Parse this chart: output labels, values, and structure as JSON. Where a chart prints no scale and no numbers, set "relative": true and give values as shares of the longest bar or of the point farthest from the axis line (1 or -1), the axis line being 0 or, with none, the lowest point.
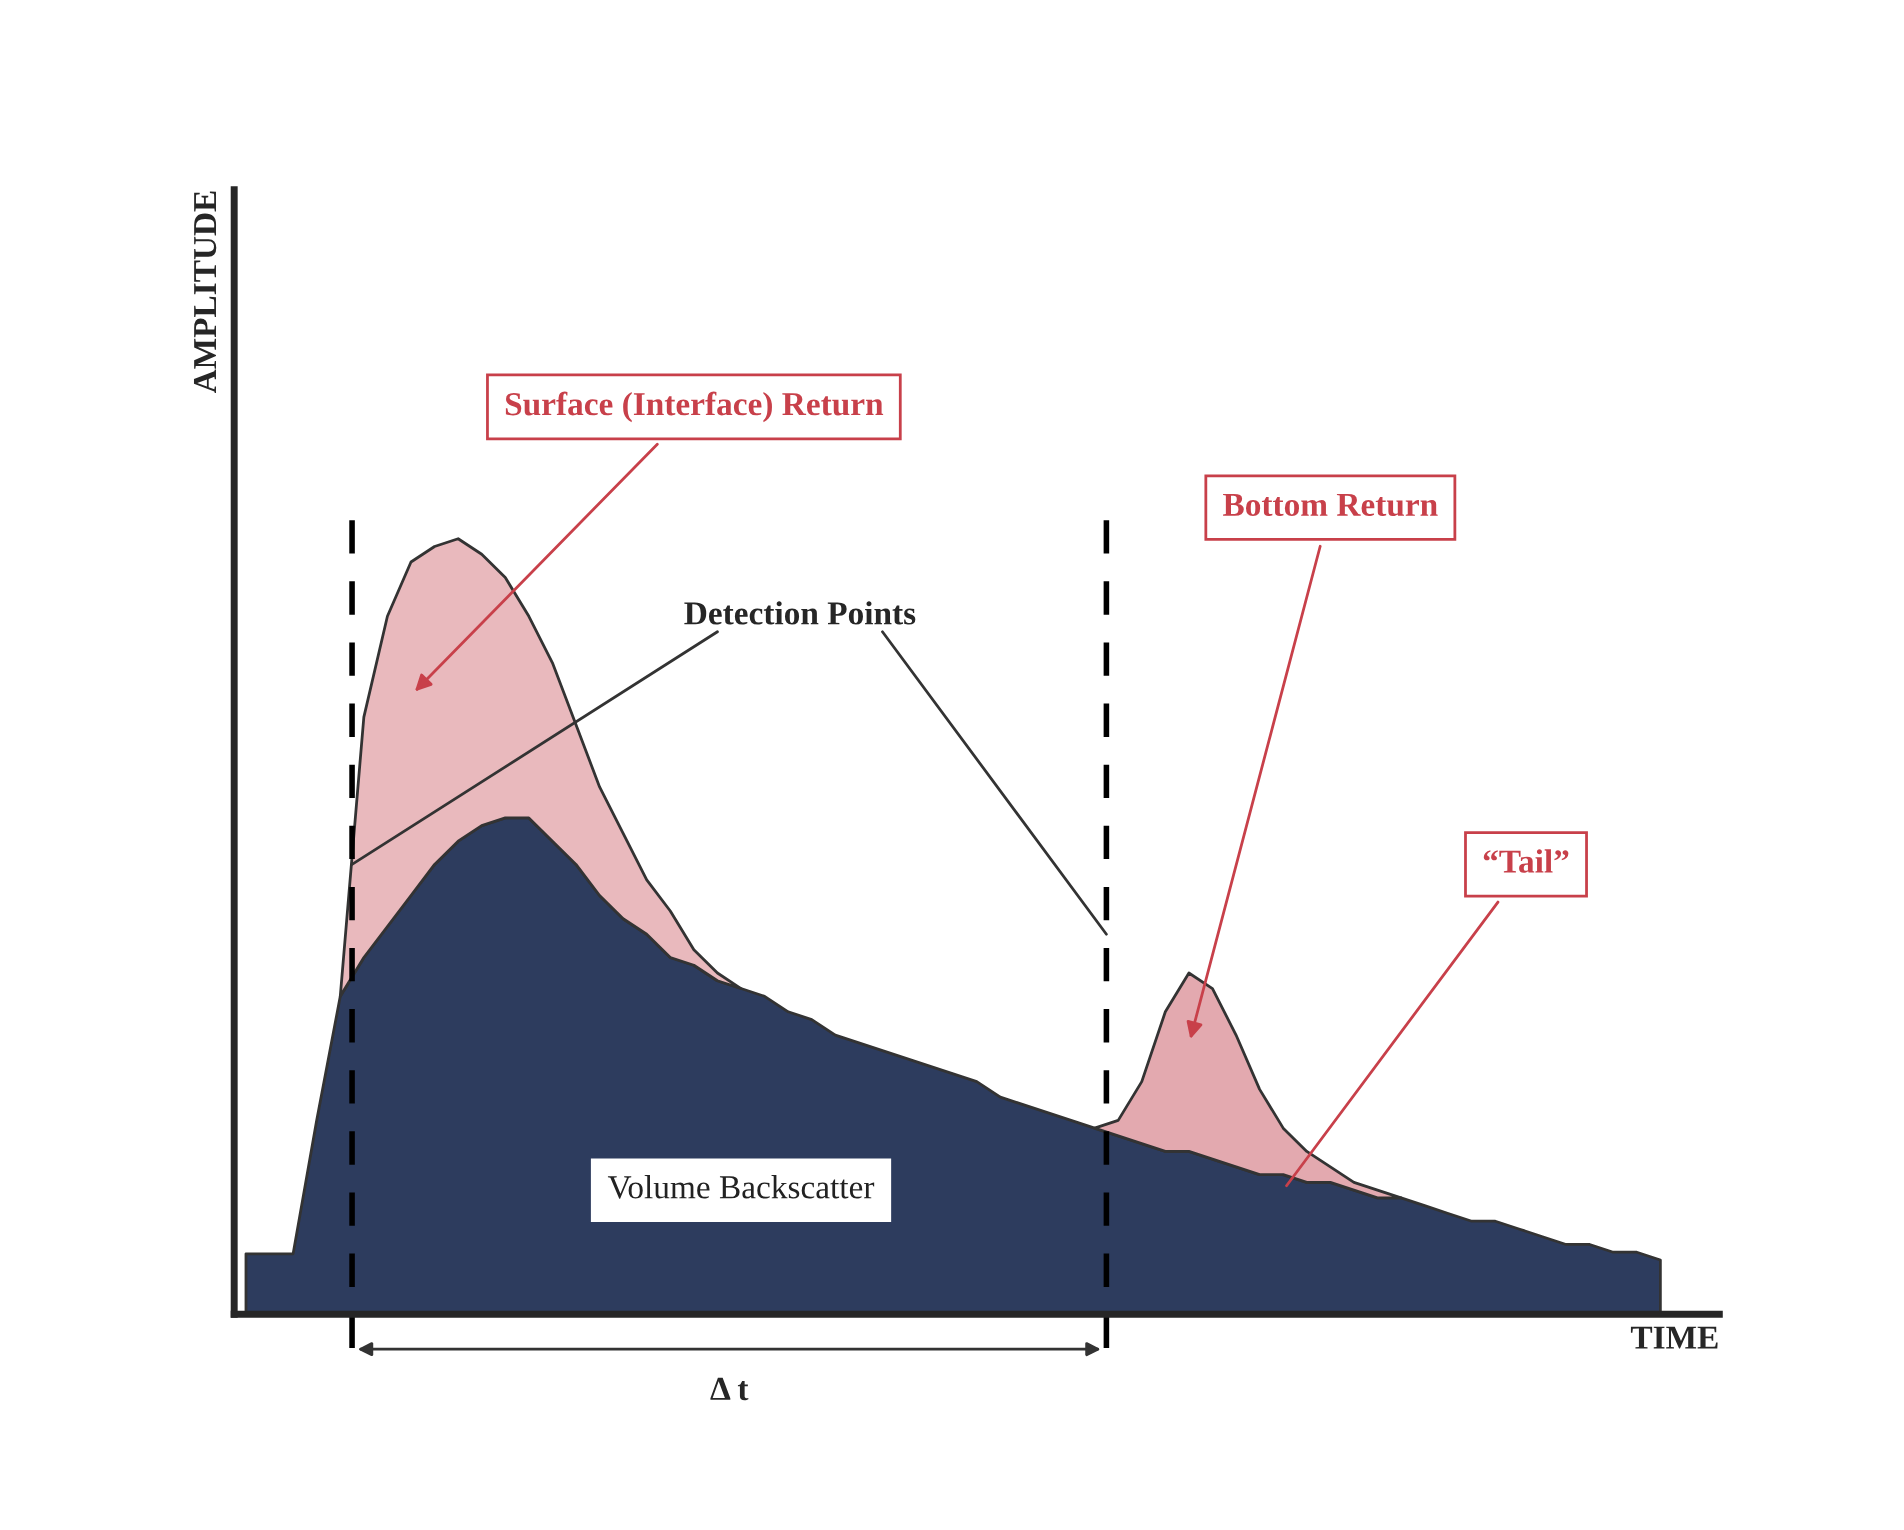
{
  "chart_data": {
    "type": "area",
    "relative": true,
    "stacked": true,
    "xlabel": "TIME",
    "ylabel": "AMPLITUDE",
    "categories": [
      null,
      null,
      null,
      null,
      null,
      null,
      null,
      null,
      null,
      null,
      null,
      null,
      null,
      null,
      null,
      null,
      null,
      null,
      null,
      null,
      null,
      null,
      null,
      null,
      null,
      null,
      null,
      null,
      null,
      null,
      null,
      null,
      null,
      null,
      null,
      null,
      null,
      null,
      null,
      null,
      null,
      null,
      null,
      null,
      null,
      null,
      null,
      null,
      null,
      null,
      null,
      null,
      null,
      null,
      null,
      null,
      null,
      null,
      null,
      null,
      null
    ],
    "series": [
      {
        "name": "Volume Backscatter",
        "color": "#2d3c5e",
        "values": [
          0.078,
          0.078,
          0.078,
          0.25,
          0.41,
          0.46,
          0.5,
          0.54,
          0.58,
          0.61,
          0.63,
          0.64,
          0.64,
          0.61,
          0.58,
          0.54,
          0.51,
          0.49,
          0.46,
          0.45,
          0.43,
          0.42,
          0.41,
          0.39,
          0.38,
          0.36,
          0.35,
          0.34,
          0.33,
          0.32,
          0.31,
          0.3,
          0.28,
          0.27,
          0.26,
          0.25,
          0.24,
          0.23,
          0.22,
          0.21,
          0.21,
          0.2,
          0.19,
          0.18,
          0.18,
          0.17,
          0.17,
          0.16,
          0.15,
          0.15,
          0.14,
          0.13,
          0.12,
          0.12,
          0.11,
          0.1,
          0.09,
          0.09,
          0.08,
          0.08,
          0.07
        ]
      },
      {
        "name": "Surface (Interface) Return",
        "color": "#e9b9bd",
        "values": [
          null,
          null,
          null,
          null,
          0,
          0.31,
          0.4,
          0.43,
          0.41,
          0.39,
          0.35,
          0.31,
          0.26,
          0.23,
          0.18,
          0.14,
          0.11,
          0.07,
          0.06,
          0.02,
          0.01,
          0,
          null,
          null,
          null,
          null,
          null,
          null,
          null,
          null,
          null,
          null,
          null,
          null,
          null,
          null,
          null,
          null,
          null,
          null,
          null,
          null,
          null,
          null,
          null,
          null,
          null,
          null,
          null,
          null,
          null,
          null,
          null,
          null,
          null,
          null,
          null,
          null,
          null,
          null,
          null
        ]
      },
      {
        "name": "Bottom Return",
        "color": "#e3a9af",
        "values": [
          null,
          null,
          null,
          null,
          null,
          null,
          null,
          null,
          null,
          null,
          null,
          null,
          null,
          null,
          null,
          null,
          null,
          null,
          null,
          null,
          null,
          null,
          null,
          null,
          null,
          null,
          null,
          null,
          null,
          null,
          null,
          null,
          null,
          null,
          null,
          null,
          0,
          0.02,
          0.08,
          0.18,
          0.23,
          0.22,
          0.17,
          0.11,
          0.06,
          0.04,
          0.02,
          0.01,
          0.01,
          0,
          null,
          null,
          null,
          null,
          null,
          null,
          null,
          null,
          null,
          null,
          null
        ]
      }
    ],
    "annotations": [
      "Detection Points",
      "“Tail”",
      "Δ t"
    ]
  }
}
